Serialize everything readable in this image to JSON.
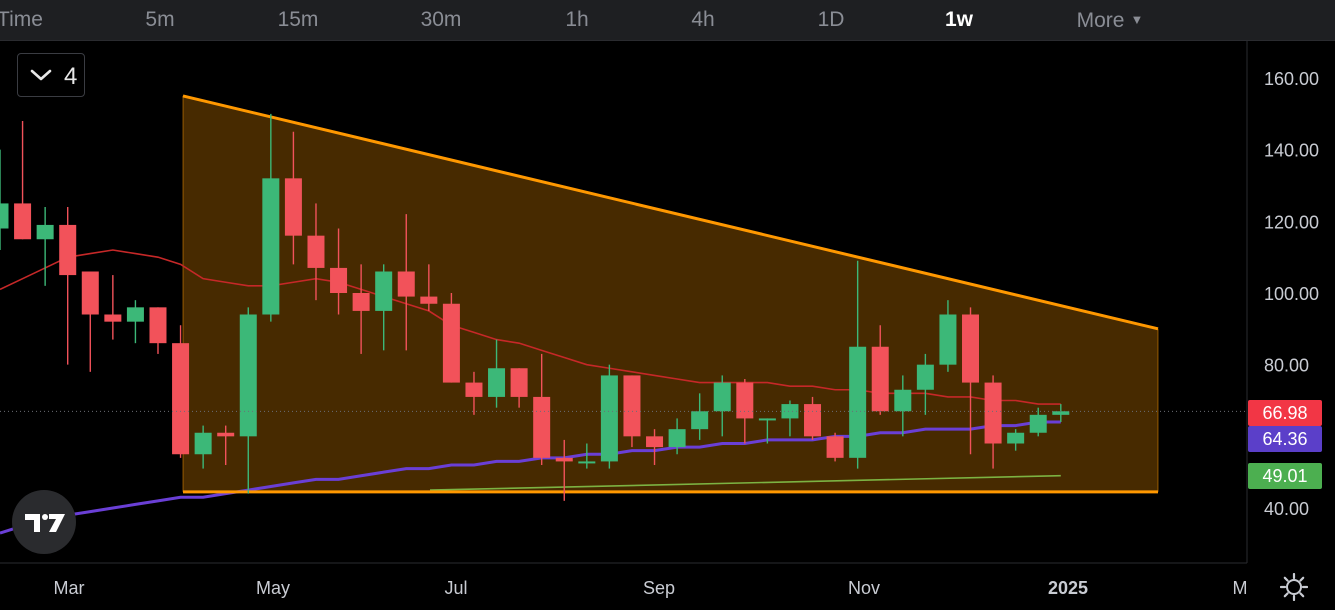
{
  "timeframes": {
    "partial_label": "Time",
    "items": [
      "5m",
      "15m",
      "30m",
      "1h",
      "4h",
      "1D",
      "1w"
    ],
    "active": "1w",
    "more": "More"
  },
  "collapse_count": "4",
  "price_badges": [
    {
      "label": "66.98",
      "color": "#f23645"
    },
    {
      "label": "64.36",
      "color": "#5b3fc9"
    },
    {
      "label": "49.01",
      "color": "#4caf50"
    }
  ],
  "chart_data": {
    "type": "candlestick",
    "title": "",
    "ylim": [
      25,
      170
    ],
    "y_ticks": [
      "160.00",
      "140.00",
      "120.00",
      "100.00",
      "80.00",
      "40.00"
    ],
    "x_ticks": [
      "Mar",
      "May",
      "Jul",
      "Sep",
      "Nov",
      "2025",
      "M"
    ],
    "timeframe": "1w",
    "current_price": 66.98,
    "candles": [
      {
        "i": 0,
        "o": 118,
        "h": 140,
        "l": 112,
        "c": 125
      },
      {
        "i": 1,
        "o": 125,
        "h": 148,
        "l": 115,
        "c": 115
      },
      {
        "i": 2,
        "o": 115,
        "h": 124,
        "l": 102,
        "c": 119
      },
      {
        "i": 3,
        "o": 119,
        "h": 124,
        "l": 80,
        "c": 105
      },
      {
        "i": 4,
        "o": 106,
        "h": 106,
        "l": 78,
        "c": 94
      },
      {
        "i": 5,
        "o": 94,
        "h": 105,
        "l": 87,
        "c": 92
      },
      {
        "i": 6,
        "o": 92,
        "h": 98,
        "l": 86,
        "c": 96
      },
      {
        "i": 7,
        "o": 96,
        "h": 96,
        "l": 83,
        "c": 86
      },
      {
        "i": 8,
        "o": 86,
        "h": 91,
        "l": 54,
        "c": 55
      },
      {
        "i": 9,
        "o": 55,
        "h": 63,
        "l": 51,
        "c": 61
      },
      {
        "i": 10,
        "o": 61,
        "h": 63,
        "l": 52,
        "c": 60
      },
      {
        "i": 11,
        "o": 60,
        "h": 96,
        "l": 44,
        "c": 94
      },
      {
        "i": 12,
        "o": 94,
        "h": 150,
        "l": 92,
        "c": 132
      },
      {
        "i": 13,
        "o": 132,
        "h": 145,
        "l": 108,
        "c": 116
      },
      {
        "i": 14,
        "o": 116,
        "h": 125,
        "l": 98,
        "c": 107
      },
      {
        "i": 15,
        "o": 107,
        "h": 118,
        "l": 94,
        "c": 100
      },
      {
        "i": 16,
        "o": 100,
        "h": 108,
        "l": 83,
        "c": 95
      },
      {
        "i": 17,
        "o": 95,
        "h": 108,
        "l": 84,
        "c": 106
      },
      {
        "i": 18,
        "o": 106,
        "h": 122,
        "l": 84,
        "c": 99
      },
      {
        "i": 19,
        "o": 99,
        "h": 108,
        "l": 95,
        "c": 97
      },
      {
        "i": 20,
        "o": 97,
        "h": 100,
        "l": 75,
        "c": 75
      },
      {
        "i": 21,
        "o": 75,
        "h": 78,
        "l": 66,
        "c": 71
      },
      {
        "i": 22,
        "o": 71,
        "h": 87,
        "l": 68,
        "c": 79
      },
      {
        "i": 23,
        "o": 79,
        "h": 79,
        "l": 68,
        "c": 71
      },
      {
        "i": 24,
        "o": 71,
        "h": 83,
        "l": 52,
        "c": 54
      },
      {
        "i": 25,
        "o": 54,
        "h": 59,
        "l": 42,
        "c": 53
      },
      {
        "i": 26,
        "o": 53,
        "h": 58,
        "l": 51,
        "c": 53
      },
      {
        "i": 27,
        "o": 53,
        "h": 80,
        "l": 51,
        "c": 77
      },
      {
        "i": 28,
        "o": 77,
        "h": 77,
        "l": 57,
        "c": 60
      },
      {
        "i": 29,
        "o": 60,
        "h": 62,
        "l": 52,
        "c": 57
      },
      {
        "i": 30,
        "o": 57,
        "h": 65,
        "l": 55,
        "c": 62
      },
      {
        "i": 31,
        "o": 62,
        "h": 72,
        "l": 59,
        "c": 67
      },
      {
        "i": 32,
        "o": 67,
        "h": 77,
        "l": 60,
        "c": 75
      },
      {
        "i": 33,
        "o": 75,
        "h": 76,
        "l": 58,
        "c": 65
      },
      {
        "i": 34,
        "o": 65,
        "h": 65,
        "l": 58,
        "c": 65
      },
      {
        "i": 35,
        "o": 65,
        "h": 70,
        "l": 60,
        "c": 69
      },
      {
        "i": 36,
        "o": 69,
        "h": 71,
        "l": 59,
        "c": 60
      },
      {
        "i": 37,
        "o": 60,
        "h": 61,
        "l": 53,
        "c": 54
      },
      {
        "i": 38,
        "o": 54,
        "h": 109,
        "l": 51,
        "c": 85
      },
      {
        "i": 39,
        "o": 85,
        "h": 91,
        "l": 66,
        "c": 67
      },
      {
        "i": 40,
        "o": 67,
        "h": 77,
        "l": 60,
        "c": 73
      },
      {
        "i": 41,
        "o": 73,
        "h": 83,
        "l": 66,
        "c": 80
      },
      {
        "i": 42,
        "o": 80,
        "h": 98,
        "l": 78,
        "c": 94
      },
      {
        "i": 43,
        "o": 94,
        "h": 96,
        "l": 55,
        "c": 75
      },
      {
        "i": 44,
        "o": 75,
        "h": 77,
        "l": 51,
        "c": 58
      },
      {
        "i": 45,
        "o": 58,
        "h": 62,
        "l": 56,
        "c": 61
      },
      {
        "i": 46,
        "o": 61,
        "h": 68,
        "l": 60,
        "c": 66
      },
      {
        "i": 47,
        "o": 66,
        "h": 69,
        "l": 64,
        "c": 67
      }
    ],
    "ma_red": [
      101,
      104,
      107,
      110,
      111,
      112,
      111,
      110,
      108,
      104,
      103,
      102,
      102,
      103,
      104,
      103,
      101,
      99,
      97,
      95,
      91,
      89,
      87,
      86,
      84,
      82,
      80,
      79,
      78,
      77,
      76,
      75,
      75,
      75,
      75,
      74,
      74,
      73,
      73,
      72,
      72,
      72,
      71,
      71,
      70,
      70,
      69,
      69
    ],
    "ma_purple": [
      33,
      35,
      37,
      38,
      39,
      40,
      41,
      42,
      43,
      43,
      44,
      45,
      46,
      47,
      48,
      48,
      49,
      50,
      51,
      51,
      52,
      52,
      53,
      53,
      54,
      54,
      55,
      55,
      56,
      56,
      57,
      57,
      58,
      58,
      59,
      59,
      59,
      60,
      60,
      61,
      61,
      62,
      62,
      62,
      63,
      63,
      64,
      64
    ],
    "ma_green_range": [
      45,
      49.01
    ],
    "triangle_pattern": {
      "upper_start": 155,
      "upper_end": 90,
      "lower_level": 44.5
    }
  }
}
